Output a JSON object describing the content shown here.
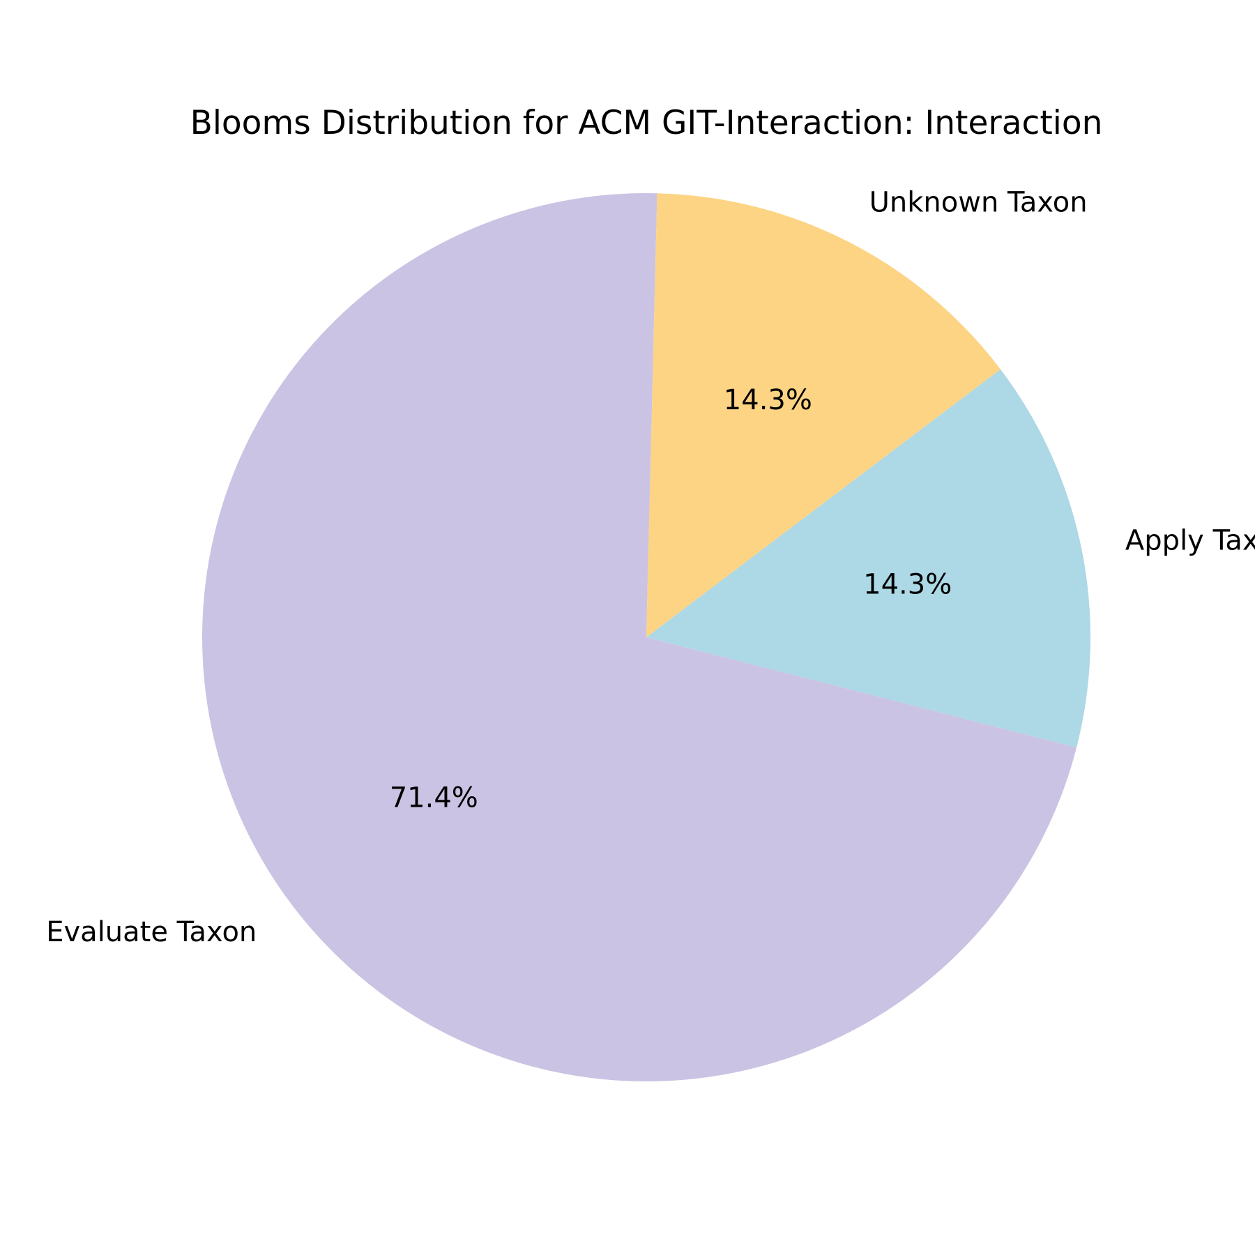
{
  "chart_data": {
    "type": "pie",
    "title": "Blooms Distribution for ACM GIT-Interaction: Interaction",
    "slices": [
      {
        "label": "Evaluate Taxon",
        "value": 71.4,
        "pct_label": "71.4%",
        "color": "#cbc3e3"
      },
      {
        "label": "Apply Taxon",
        "value": 14.3,
        "pct_label": "14.3%",
        "color": "#add8e6"
      },
      {
        "label": "Unknown Taxon",
        "value": 14.3,
        "pct_label": "14.3%",
        "color": "#fdd484"
      }
    ],
    "start_angle_deg": 88.6,
    "direction": "counterclockwise",
    "legend": "none"
  }
}
